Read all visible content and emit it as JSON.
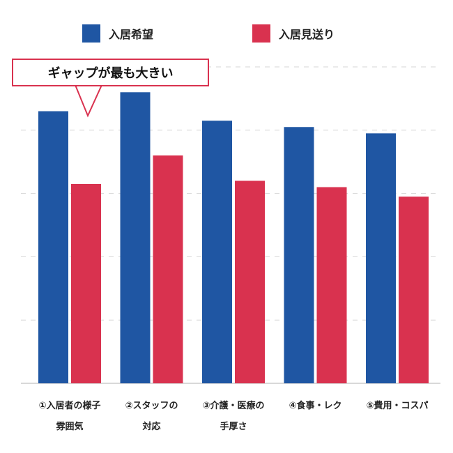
{
  "chart_data": {
    "type": "bar",
    "title": "",
    "xlabel": "",
    "ylabel": "",
    "ylim": [
      0,
      100
    ],
    "grid": true,
    "legend_position": "top",
    "categories": [
      [
        "①入居者の様子",
        "雰囲気"
      ],
      [
        "②スタッフの",
        "対応"
      ],
      [
        "③介護・医療の",
        "手厚さ"
      ],
      [
        "④食事・レク"
      ],
      [
        "⑤費用・コスパ"
      ]
    ],
    "series": [
      {
        "name": "入居希望",
        "color": "#1f56a3",
        "values": [
          86,
          92,
          83,
          81,
          79
        ]
      },
      {
        "name": "入居見送り",
        "color": "#d9324f",
        "values": [
          63,
          72,
          64,
          62,
          59
        ]
      }
    ],
    "annotation": {
      "text": "ギャップが最も大きい",
      "border_color": "#d9324f"
    }
  }
}
